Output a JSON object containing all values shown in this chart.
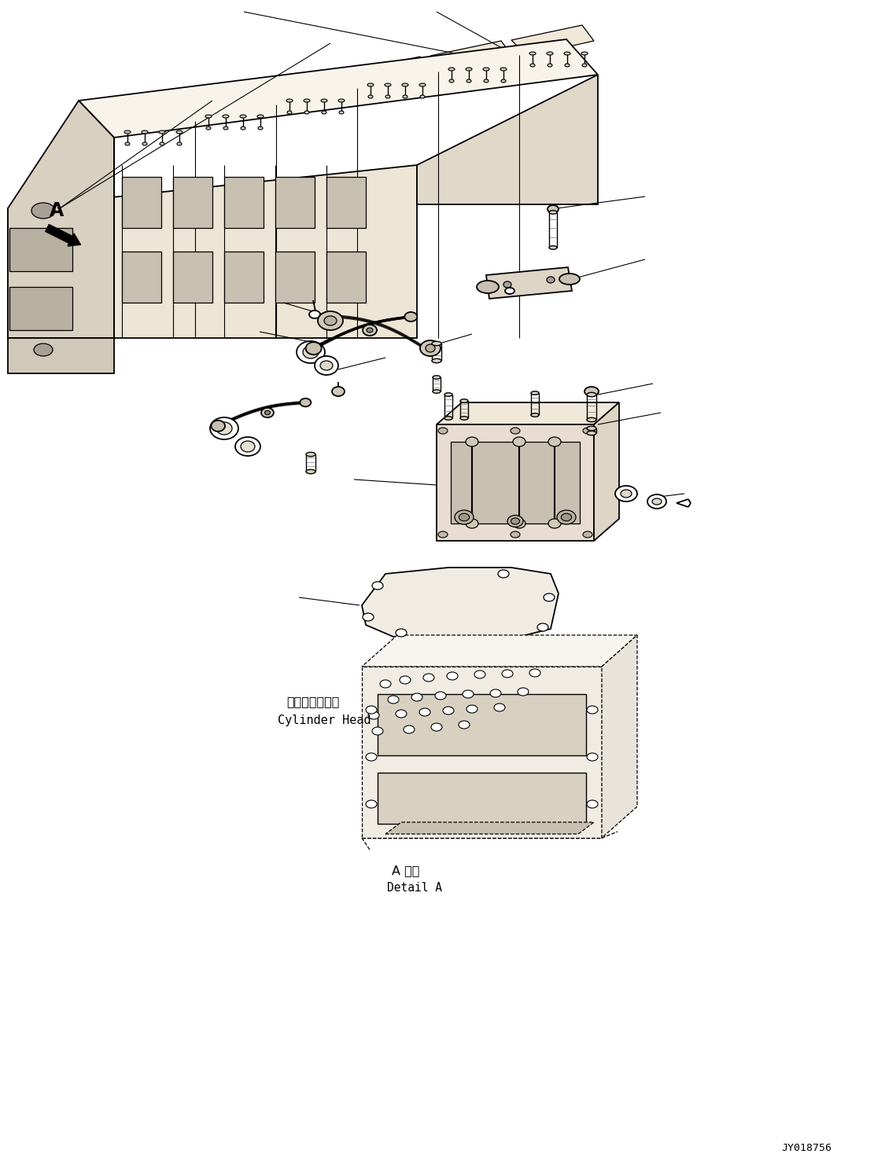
{
  "background_color": "#ffffff",
  "fig_width": 11.39,
  "fig_height": 14.91,
  "dpi": 100,
  "label_A": "A",
  "label_japanese": "シリンダヘッド",
  "label_english": "Cylinder Head",
  "label_detail_jp": "A 詳細",
  "label_detail_en": "Detail A",
  "label_drw_num": "JY018756",
  "lw_main": 1.3,
  "lw_thin": 0.8,
  "lw_thick": 2.0
}
